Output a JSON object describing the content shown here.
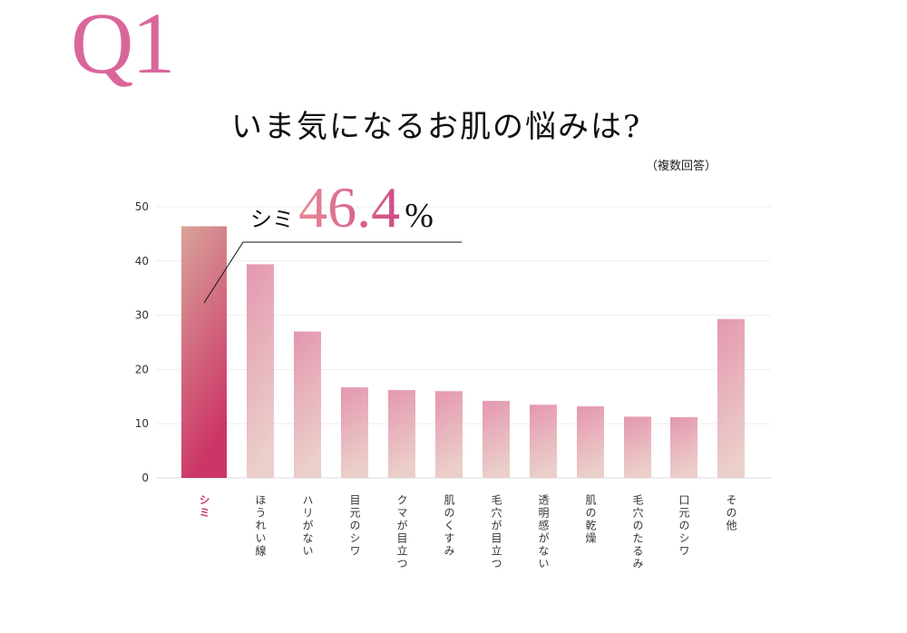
{
  "heading": {
    "q": "Q1",
    "title": "いま気になるお肌の悩みは?",
    "subtitle": "（複数回答）"
  },
  "callout": {
    "label": "シミ",
    "value": "46.4",
    "unit": "%"
  },
  "colors": {
    "highlight_top": "#d8a39a",
    "highlight_bottom": "#cc3566",
    "bar_top": "#e497af",
    "bar_bottom": "#ebcfca",
    "highlight_label": "#cc3566",
    "q": "#d9669b"
  },
  "chart_data": {
    "type": "bar",
    "categories": [
      "シミ",
      "ほうれい線",
      "ハリがない",
      "目元のシワ",
      "クマが目立つ",
      "肌のくすみ",
      "毛穴が目立つ",
      "透明感がない",
      "肌の乾燥",
      "毛穴のたるみ",
      "口元のシワ",
      "その他"
    ],
    "values": [
      46.4,
      39.4,
      27.0,
      16.7,
      16.2,
      16.0,
      14.2,
      13.5,
      13.2,
      11.3,
      11.2,
      29.3
    ],
    "ylim": [
      0,
      50
    ],
    "yticks": [
      0,
      10,
      20,
      30,
      40,
      50
    ],
    "grid": true,
    "highlight_index": 0
  }
}
